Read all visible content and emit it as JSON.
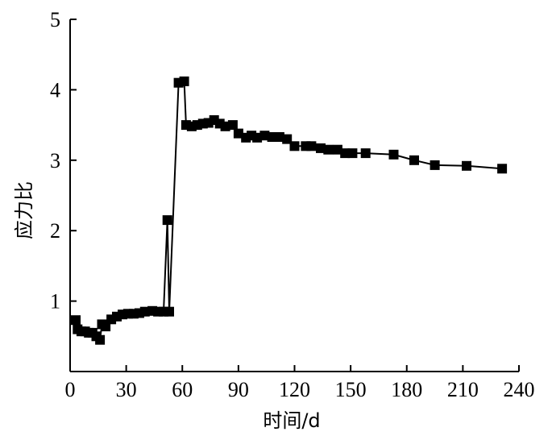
{
  "chart_data": {
    "type": "line",
    "xlabel": "时间/d",
    "ylabel": "应力比",
    "xlim": [
      0,
      240
    ],
    "ylim": [
      0,
      5
    ],
    "xticks": [
      0,
      30,
      60,
      90,
      120,
      150,
      180,
      210,
      240
    ],
    "yticks": [
      1,
      2,
      3,
      4,
      5
    ],
    "grid": false,
    "legend": "none",
    "marker": "square",
    "color": "#000000",
    "series": [
      {
        "x": [
          3,
          4,
          6,
          8,
          10,
          12,
          14,
          16,
          17,
          19,
          22,
          25,
          28,
          31,
          34,
          37,
          40,
          44,
          47,
          50,
          52,
          53,
          58,
          61,
          62,
          65,
          68,
          71,
          74,
          77,
          80,
          83,
          87,
          90,
          94,
          97,
          100,
          104,
          108,
          112,
          116,
          120,
          126,
          129,
          134,
          138,
          143,
          147,
          151,
          158,
          173,
          184,
          195,
          212,
          231
        ],
        "y": [
          0.73,
          0.6,
          0.57,
          0.57,
          0.55,
          0.55,
          0.5,
          0.45,
          0.67,
          0.64,
          0.74,
          0.78,
          0.81,
          0.82,
          0.82,
          0.83,
          0.85,
          0.86,
          0.85,
          0.85,
          2.15,
          0.85,
          4.1,
          4.12,
          3.5,
          3.48,
          3.5,
          3.52,
          3.53,
          3.57,
          3.52,
          3.48,
          3.5,
          3.38,
          3.32,
          3.35,
          3.32,
          3.35,
          3.33,
          3.33,
          3.3,
          3.2,
          3.2,
          3.2,
          3.17,
          3.15,
          3.15,
          3.1,
          3.1,
          3.1,
          3.08,
          3.0,
          2.93,
          2.92,
          2.88
        ]
      }
    ]
  }
}
